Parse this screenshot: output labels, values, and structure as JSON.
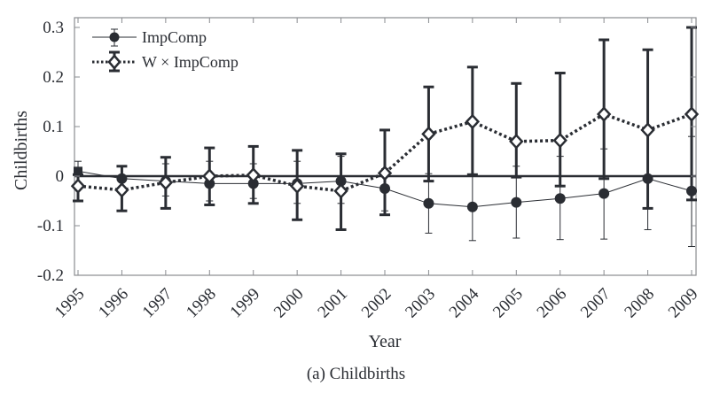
{
  "chart_data": {
    "type": "line",
    "title": "",
    "caption": "(a) Childbirths",
    "xlabel": "Year",
    "ylabel": "Childbirths",
    "x": [
      1995,
      1996,
      1997,
      1998,
      1999,
      2000,
      2001,
      2002,
      2003,
      2004,
      2005,
      2006,
      2007,
      2008,
      2009
    ],
    "x_tick_labels": [
      "1995",
      "1996",
      "1997",
      "1998",
      "1999",
      "2000",
      "2001",
      "2002",
      "2003",
      "2004",
      "2005",
      "2006",
      "2007",
      "2008",
      "2009"
    ],
    "ylim": [
      -0.2,
      0.3
    ],
    "y_ticks": [
      -0.2,
      -0.1,
      0,
      0.1,
      0.2,
      0.3
    ],
    "y_tick_labels": [
      "-0.2",
      "-0.1",
      "0",
      "0.1",
      "0.2",
      "0.3"
    ],
    "grid": false,
    "zero_line": true,
    "legend_position": "top-left",
    "series": [
      {
        "name": "ImpComp",
        "marker": "circle",
        "line_style": "solid-thin",
        "color": "#2a2d33",
        "values": [
          0.01,
          -0.005,
          -0.01,
          -0.015,
          -0.015,
          -0.015,
          -0.01,
          -0.025,
          -0.055,
          -0.062,
          -0.053,
          -0.045,
          -0.035,
          -0.005,
          -0.03
        ],
        "lower": [
          -0.02,
          -0.03,
          -0.04,
          -0.05,
          -0.045,
          -0.055,
          -0.055,
          -0.07,
          -0.115,
          -0.13,
          -0.125,
          -0.128,
          -0.127,
          -0.108,
          -0.142
        ],
        "upper": [
          0.03,
          0.02,
          0.025,
          0.03,
          0.025,
          0.03,
          0.04,
          0.015,
          0.005,
          0.003,
          0.02,
          0.04,
          0.055,
          0.098,
          0.08
        ]
      },
      {
        "name": "W × ImpComp",
        "marker": "diamond",
        "line_style": "dotted-thick",
        "color": "#2a2d33",
        "values": [
          -0.02,
          -0.028,
          -0.013,
          0.0,
          0.002,
          -0.02,
          -0.03,
          0.006,
          0.085,
          0.11,
          0.07,
          0.072,
          0.125,
          0.093,
          0.125
        ],
        "lower": [
          -0.05,
          -0.07,
          -0.065,
          -0.058,
          -0.055,
          -0.088,
          -0.108,
          -0.078,
          -0.01,
          0.003,
          -0.002,
          -0.02,
          -0.005,
          -0.065,
          -0.048
        ],
        "upper": [
          0.003,
          0.02,
          0.038,
          0.057,
          0.06,
          0.052,
          0.045,
          0.093,
          0.18,
          0.22,
          0.187,
          0.208,
          0.275,
          0.255,
          0.3
        ]
      }
    ]
  }
}
